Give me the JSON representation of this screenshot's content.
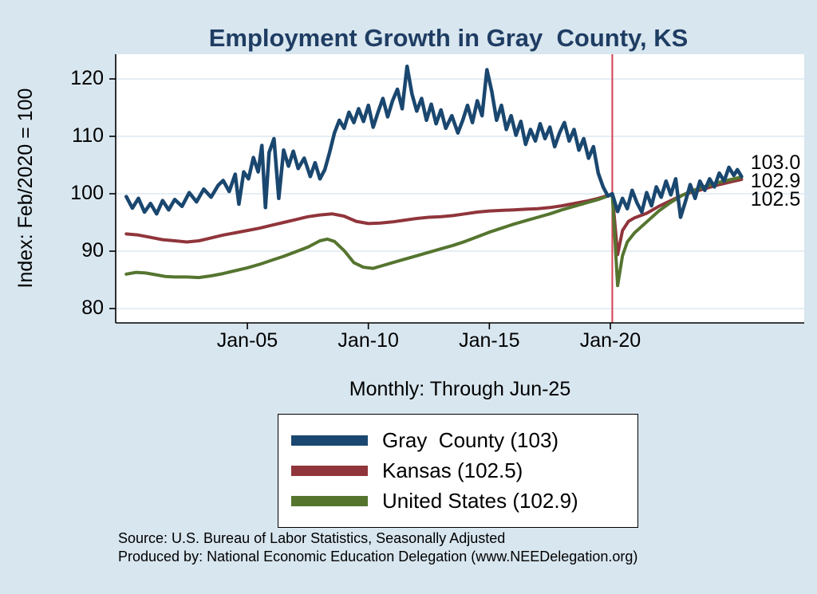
{
  "colors": {
    "background": "#d8e6ef",
    "plot_bg": "#ffffff",
    "grid": "#dce8f0",
    "axis": "#000000",
    "title_color": "#1f3d63"
  },
  "source": {
    "line1": "Source: U.S. Bureau of Labor Statistics, Seasonally Adjusted",
    "line2": "Produced by: National Economic Education Delegation (www.NEEDelegation.org)"
  },
  "chart_data": {
    "type": "line",
    "title": "Employment Growth in Gray  County, KS",
    "subtitle": "Monthly: Through Jun-25",
    "xlabel": "",
    "ylabel": "Index: Feb/2020 = 100",
    "ylim": [
      77.5,
      124.3
    ],
    "xlim": [
      1999.6,
      2028.0
    ],
    "grid": "horizontal",
    "yticks": [
      80,
      90,
      100,
      110,
      120
    ],
    "xticks": [
      {
        "label": "Jan-05",
        "year": 2005
      },
      {
        "label": "Jan-10",
        "year": 2010
      },
      {
        "label": "Jan-15",
        "year": 2015
      },
      {
        "label": "Jan-20",
        "year": 2020
      }
    ],
    "event_line": {
      "x": 2020.08,
      "color": "#d04253",
      "meaning": "Feb-2020 reference line"
    },
    "end_labels": [
      "103.0",
      "102.9",
      "102.5"
    ],
    "legend": [
      {
        "label": "Gray  County (103)",
        "color": "#1a476f"
      },
      {
        "label": "Kansas (102.5)",
        "color": "#90353b"
      },
      {
        "label": "United States (102.9)",
        "color": "#55752f"
      }
    ],
    "series": [
      {
        "name": "Kansas",
        "color": "#90353b",
        "width": 4,
        "points": [
          [
            2000.0,
            93.0
          ],
          [
            2000.5,
            92.8
          ],
          [
            2001.0,
            92.4
          ],
          [
            2001.5,
            92.0
          ],
          [
            2002.0,
            91.8
          ],
          [
            2002.5,
            91.6
          ],
          [
            2003.0,
            91.8
          ],
          [
            2003.5,
            92.3
          ],
          [
            2004.0,
            92.8
          ],
          [
            2004.5,
            93.2
          ],
          [
            2005.0,
            93.6
          ],
          [
            2005.5,
            94.0
          ],
          [
            2006.0,
            94.5
          ],
          [
            2006.5,
            95.0
          ],
          [
            2007.0,
            95.5
          ],
          [
            2007.5,
            96.0
          ],
          [
            2008.0,
            96.3
          ],
          [
            2008.5,
            96.5
          ],
          [
            2009.0,
            96.1
          ],
          [
            2009.5,
            95.2
          ],
          [
            2010.0,
            94.8
          ],
          [
            2010.5,
            94.9
          ],
          [
            2011.0,
            95.1
          ],
          [
            2011.5,
            95.4
          ],
          [
            2012.0,
            95.7
          ],
          [
            2012.5,
            95.9
          ],
          [
            2013.0,
            96.0
          ],
          [
            2013.5,
            96.2
          ],
          [
            2014.0,
            96.5
          ],
          [
            2014.5,
            96.8
          ],
          [
            2015.0,
            97.0
          ],
          [
            2015.5,
            97.1
          ],
          [
            2016.0,
            97.2
          ],
          [
            2016.5,
            97.3
          ],
          [
            2017.0,
            97.4
          ],
          [
            2017.5,
            97.6
          ],
          [
            2018.0,
            97.9
          ],
          [
            2018.5,
            98.3
          ],
          [
            2019.0,
            98.7
          ],
          [
            2019.5,
            99.2
          ],
          [
            2019.9,
            99.7
          ],
          [
            2020.08,
            100.0
          ],
          [
            2020.3,
            89.4
          ],
          [
            2020.5,
            93.6
          ],
          [
            2020.75,
            95.2
          ],
          [
            2021.0,
            95.8
          ],
          [
            2021.5,
            96.6
          ],
          [
            2022.0,
            97.8
          ],
          [
            2022.5,
            98.8
          ],
          [
            2023.0,
            99.8
          ],
          [
            2023.5,
            100.4
          ],
          [
            2024.0,
            101.0
          ],
          [
            2024.5,
            101.6
          ],
          [
            2025.0,
            102.1
          ],
          [
            2025.42,
            102.5
          ]
        ]
      },
      {
        "name": "United States",
        "color": "#55752f",
        "width": 4,
        "points": [
          [
            2000.0,
            86.0
          ],
          [
            2000.4,
            86.3
          ],
          [
            2000.8,
            86.2
          ],
          [
            2001.2,
            85.9
          ],
          [
            2001.6,
            85.6
          ],
          [
            2002.0,
            85.5
          ],
          [
            2002.5,
            85.5
          ],
          [
            2003.0,
            85.4
          ],
          [
            2003.5,
            85.7
          ],
          [
            2004.0,
            86.1
          ],
          [
            2004.5,
            86.6
          ],
          [
            2005.0,
            87.1
          ],
          [
            2005.5,
            87.7
          ],
          [
            2006.0,
            88.4
          ],
          [
            2006.5,
            89.1
          ],
          [
            2007.0,
            89.9
          ],
          [
            2007.5,
            90.7
          ],
          [
            2008.0,
            91.8
          ],
          [
            2008.3,
            92.1
          ],
          [
            2008.6,
            91.7
          ],
          [
            2009.0,
            90.1
          ],
          [
            2009.4,
            88.0
          ],
          [
            2009.8,
            87.2
          ],
          [
            2010.2,
            87.0
          ],
          [
            2010.6,
            87.5
          ],
          [
            2011.0,
            88.0
          ],
          [
            2011.5,
            88.6
          ],
          [
            2012.0,
            89.2
          ],
          [
            2012.5,
            89.8
          ],
          [
            2013.0,
            90.4
          ],
          [
            2013.5,
            91.0
          ],
          [
            2014.0,
            91.7
          ],
          [
            2014.5,
            92.5
          ],
          [
            2015.0,
            93.3
          ],
          [
            2015.5,
            94.0
          ],
          [
            2016.0,
            94.7
          ],
          [
            2016.5,
            95.3
          ],
          [
            2017.0,
            95.9
          ],
          [
            2017.5,
            96.5
          ],
          [
            2018.0,
            97.2
          ],
          [
            2018.5,
            97.8
          ],
          [
            2019.0,
            98.4
          ],
          [
            2019.5,
            99.0
          ],
          [
            2019.9,
            99.6
          ],
          [
            2020.08,
            100.0
          ],
          [
            2020.3,
            84.0
          ],
          [
            2020.5,
            89.2
          ],
          [
            2020.7,
            91.6
          ],
          [
            2021.0,
            93.2
          ],
          [
            2021.5,
            95.1
          ],
          [
            2022.0,
            97.0
          ],
          [
            2022.5,
            98.5
          ],
          [
            2023.0,
            99.8
          ],
          [
            2023.5,
            100.7
          ],
          [
            2024.0,
            101.4
          ],
          [
            2024.5,
            102.0
          ],
          [
            2025.0,
            102.5
          ],
          [
            2025.42,
            102.9
          ]
        ]
      },
      {
        "name": "Gray County",
        "color": "#1a476f",
        "width": 4.5,
        "points": [
          [
            2000.0,
            99.5
          ],
          [
            2000.25,
            97.5
          ],
          [
            2000.5,
            99.2
          ],
          [
            2000.75,
            96.8
          ],
          [
            2001.0,
            98.3
          ],
          [
            2001.25,
            96.5
          ],
          [
            2001.5,
            98.8
          ],
          [
            2001.75,
            97.2
          ],
          [
            2002.0,
            99.0
          ],
          [
            2002.3,
            97.8
          ],
          [
            2002.6,
            100.2
          ],
          [
            2002.9,
            98.6
          ],
          [
            2003.2,
            100.8
          ],
          [
            2003.5,
            99.4
          ],
          [
            2003.8,
            101.5
          ],
          [
            2004.0,
            102.3
          ],
          [
            2004.25,
            100.4
          ],
          [
            2004.5,
            103.4
          ],
          [
            2004.65,
            98.2
          ],
          [
            2004.85,
            103.8
          ],
          [
            2005.05,
            102.6
          ],
          [
            2005.25,
            106.3
          ],
          [
            2005.45,
            103.8
          ],
          [
            2005.6,
            108.4
          ],
          [
            2005.75,
            97.6
          ],
          [
            2005.9,
            107.2
          ],
          [
            2006.1,
            109.6
          ],
          [
            2006.3,
            99.2
          ],
          [
            2006.5,
            107.6
          ],
          [
            2006.7,
            104.8
          ],
          [
            2006.9,
            107.4
          ],
          [
            2007.1,
            104.4
          ],
          [
            2007.35,
            106.2
          ],
          [
            2007.6,
            103.0
          ],
          [
            2007.8,
            105.4
          ],
          [
            2008.0,
            102.6
          ],
          [
            2008.2,
            104.2
          ],
          [
            2008.4,
            107.2
          ],
          [
            2008.6,
            110.6
          ],
          [
            2008.8,
            112.8
          ],
          [
            2009.0,
            111.4
          ],
          [
            2009.2,
            114.2
          ],
          [
            2009.4,
            112.4
          ],
          [
            2009.6,
            114.8
          ],
          [
            2009.8,
            112.6
          ],
          [
            2010.0,
            115.4
          ],
          [
            2010.2,
            111.6
          ],
          [
            2010.4,
            114.2
          ],
          [
            2010.6,
            116.6
          ],
          [
            2010.8,
            113.4
          ],
          [
            2011.0,
            116.2
          ],
          [
            2011.2,
            118.2
          ],
          [
            2011.4,
            114.8
          ],
          [
            2011.6,
            122.2
          ],
          [
            2011.8,
            117.4
          ],
          [
            2012.0,
            114.4
          ],
          [
            2012.2,
            116.6
          ],
          [
            2012.4,
            112.8
          ],
          [
            2012.6,
            115.6
          ],
          [
            2012.8,
            112.2
          ],
          [
            2013.0,
            114.6
          ],
          [
            2013.2,
            111.4
          ],
          [
            2013.45,
            113.6
          ],
          [
            2013.7,
            110.6
          ],
          [
            2013.9,
            112.8
          ],
          [
            2014.1,
            115.4
          ],
          [
            2014.3,
            112.4
          ],
          [
            2014.5,
            116.2
          ],
          [
            2014.7,
            113.6
          ],
          [
            2014.9,
            121.6
          ],
          [
            2015.1,
            117.8
          ],
          [
            2015.3,
            112.8
          ],
          [
            2015.5,
            115.4
          ],
          [
            2015.7,
            111.2
          ],
          [
            2015.9,
            113.6
          ],
          [
            2016.1,
            110.2
          ],
          [
            2016.3,
            112.6
          ],
          [
            2016.5,
            108.6
          ],
          [
            2016.7,
            111.2
          ],
          [
            2016.9,
            109.2
          ],
          [
            2017.1,
            112.2
          ],
          [
            2017.3,
            109.6
          ],
          [
            2017.5,
            111.6
          ],
          [
            2017.7,
            108.2
          ],
          [
            2017.9,
            110.6
          ],
          [
            2018.1,
            112.4
          ],
          [
            2018.3,
            109.2
          ],
          [
            2018.5,
            111.2
          ],
          [
            2018.7,
            107.6
          ],
          [
            2018.9,
            109.6
          ],
          [
            2019.1,
            106.2
          ],
          [
            2019.3,
            108.2
          ],
          [
            2019.5,
            103.6
          ],
          [
            2019.7,
            101.2
          ],
          [
            2019.9,
            99.6
          ],
          [
            2020.08,
            100.0
          ],
          [
            2020.3,
            96.9
          ],
          [
            2020.5,
            99.2
          ],
          [
            2020.7,
            97.4
          ],
          [
            2020.9,
            100.6
          ],
          [
            2021.1,
            98.4
          ],
          [
            2021.3,
            96.8
          ],
          [
            2021.5,
            100.2
          ],
          [
            2021.7,
            97.9
          ],
          [
            2021.9,
            101.2
          ],
          [
            2022.1,
            99.4
          ],
          [
            2022.3,
            102.2
          ],
          [
            2022.5,
            99.8
          ],
          [
            2022.7,
            102.6
          ],
          [
            2022.9,
            95.9
          ],
          [
            2023.1,
            98.6
          ],
          [
            2023.3,
            101.6
          ],
          [
            2023.5,
            99.2
          ],
          [
            2023.7,
            102.2
          ],
          [
            2023.9,
            100.6
          ],
          [
            2024.1,
            102.6
          ],
          [
            2024.3,
            101.2
          ],
          [
            2024.5,
            103.6
          ],
          [
            2024.7,
            102.2
          ],
          [
            2024.9,
            104.6
          ],
          [
            2025.1,
            103.2
          ],
          [
            2025.25,
            104.2
          ],
          [
            2025.42,
            103.0
          ]
        ]
      }
    ]
  }
}
